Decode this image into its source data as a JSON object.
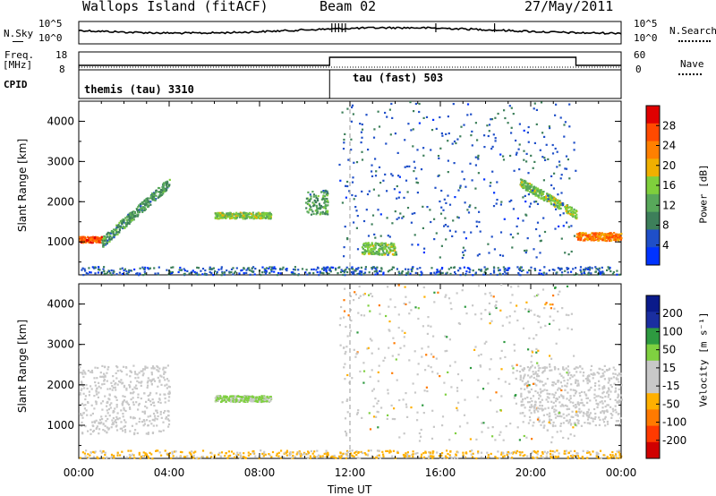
{
  "header": {
    "station": "Wallops Island (fitACF)",
    "beam": "Beam 02",
    "date": "27/May/2011"
  },
  "top_strip": {
    "nsky_label": "N.Sky",
    "nsky_ticks": [
      "10^5",
      "10^0"
    ],
    "nsearch_ticks": [
      "10^5",
      "10^0"
    ],
    "nsearch_label": "N.Search",
    "freq_label_1": "Freq.",
    "freq_label_2": "[MHz]",
    "freq_ticks": [
      "18",
      "8"
    ],
    "nave_ticks": [
      "60",
      "0"
    ],
    "nave_label": "Nave",
    "cpid_label": "CPID",
    "cpid_1": "themis (tau) 3310",
    "cpid_2": "tau (fast) 503"
  },
  "colors": {
    "power_scale": [
      "#0033ff",
      "#1f4fc8",
      "#3d7f5a",
      "#58a85a",
      "#7fcf3c",
      "#f0b000",
      "#ff8000",
      "#ff4a00",
      "#e00000"
    ],
    "velocity_scale": [
      "#d00000",
      "#ff3a00",
      "#ff7a00",
      "#ffb000",
      "#c8c8c8",
      "#c8c8c8",
      "#7fd040",
      "#2e9a40",
      "#1a2ea0",
      "#0a1a8a"
    ],
    "grey": "#c8c8c8"
  },
  "chart_data": [
    {
      "type": "heatmap",
      "title": "",
      "ylabel": "Slant Range [km]",
      "xlabel": "",
      "x_ticks": [
        "00:00",
        "04:00",
        "08:00",
        "12:00",
        "16:00",
        "20:00",
        "00:00"
      ],
      "y_ticks": [
        "1000",
        "2000",
        "3000",
        "4000"
      ],
      "ylim": [
        180,
        4500
      ],
      "xlim_hours": [
        0,
        24
      ],
      "colorbar": {
        "label": "Power [dB]",
        "ticks": [
          "28",
          "24",
          "20",
          "16",
          "12",
          "8",
          "4"
        ],
        "range": [
          0,
          30
        ]
      },
      "features": [
        {
          "name": "morning band",
          "start_ut": "00:00",
          "end_ut": "01:00",
          "range_km": [
            1000,
            1150
          ],
          "power_db": 24
        },
        {
          "name": "rising band",
          "start_ut": "01:00",
          "end_ut": "04:00",
          "range_km": [
            1000,
            2500
          ],
          "power_db": 10
        },
        {
          "name": "patch",
          "start_ut": "06:00",
          "end_ut": "08:30",
          "range_km": [
            1600,
            1750
          ],
          "power_db": 14
        },
        {
          "name": "patch",
          "start_ut": "10:00",
          "end_ut": "11:00",
          "range_km": [
            1700,
            2300
          ],
          "power_db": 10
        },
        {
          "name": "patch",
          "start_ut": "12:30",
          "end_ut": "14:00",
          "range_km": [
            700,
            1000
          ],
          "power_db": 14
        },
        {
          "name": "evening band",
          "start_ut": "19:30",
          "end_ut": "22:00",
          "range_km": [
            1700,
            2500
          ],
          "power_db": 14
        },
        {
          "name": "late band",
          "start_ut": "22:00",
          "end_ut": "24:00",
          "range_km": [
            1050,
            1250
          ],
          "power_db": 22
        },
        {
          "name": "ground scatter floor",
          "start_ut": "00:00",
          "end_ut": "24:00",
          "range_km": [
            200,
            400
          ],
          "power_db": 6
        }
      ]
    },
    {
      "type": "heatmap",
      "title": "",
      "ylabel": "Slant Range [km]",
      "xlabel": "Time UT",
      "x_ticks": [
        "00:00",
        "04:00",
        "08:00",
        "12:00",
        "16:00",
        "20:00",
        "00:00"
      ],
      "y_ticks": [
        "1000",
        "2000",
        "3000",
        "4000"
      ],
      "ylim": [
        180,
        4500
      ],
      "xlim_hours": [
        0,
        24
      ],
      "colorbar": {
        "label": "Velocity [m s⁻¹]",
        "ticks": [
          "200",
          "100",
          "50",
          "15",
          "-15",
          "-50",
          "-100",
          "-200"
        ],
        "range": [
          -250,
          250
        ]
      },
      "features": [
        {
          "name": "ground scatter",
          "start_ut": "00:00",
          "end_ut": "04:00",
          "range_km": [
            800,
            2500
          ],
          "velocity_ms": 0
        },
        {
          "name": "patch",
          "start_ut": "06:00",
          "end_ut": "08:30",
          "range_km": [
            1600,
            1750
          ],
          "velocity_ms": 60
        },
        {
          "name": "ground scatter",
          "start_ut": "19:30",
          "end_ut": "24:00",
          "range_km": [
            1000,
            2500
          ],
          "velocity_ms": 0
        },
        {
          "name": "near-range floor",
          "start_ut": "00:00",
          "end_ut": "24:00",
          "range_km": [
            200,
            400
          ],
          "velocity_ms": -60
        }
      ]
    }
  ]
}
